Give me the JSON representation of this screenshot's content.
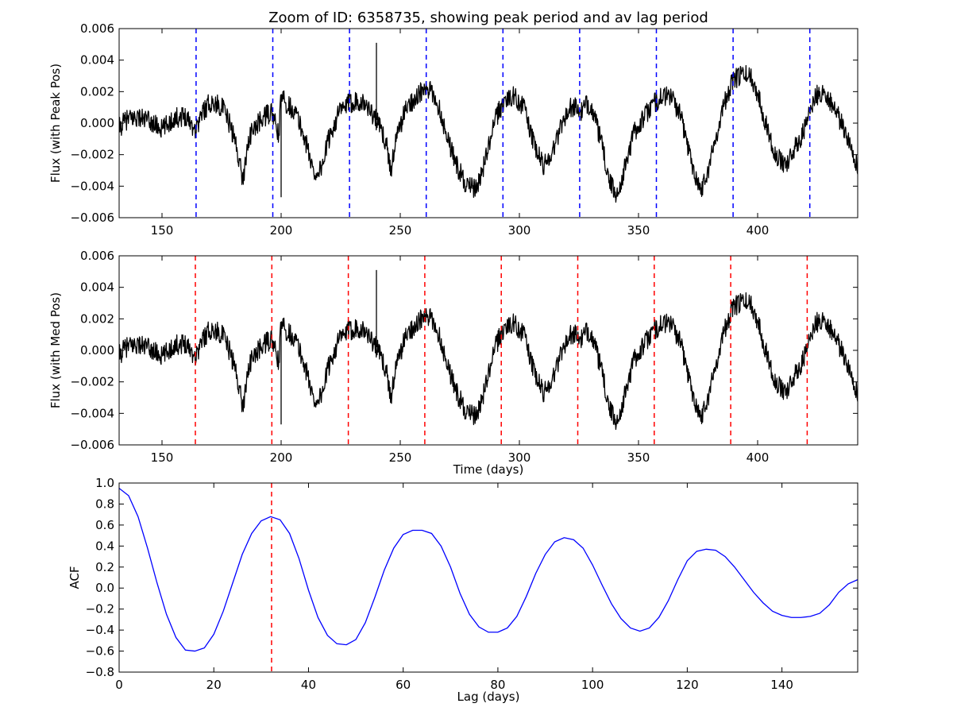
{
  "figure": {
    "title": "Zoom of ID: 6358735, showing peak period and av lag period"
  },
  "chart_data": [
    {
      "type": "line",
      "ylabel": "Flux (with Peak Pos)",
      "xlabel": "",
      "xlim": [
        132,
        442
      ],
      "ylim": [
        -0.006,
        0.006
      ],
      "xticks": [
        150,
        200,
        250,
        300,
        350,
        400
      ],
      "yticks": [
        -0.006,
        -0.004,
        -0.002,
        0.0,
        0.002,
        0.004,
        0.006
      ],
      "ytick_labels": [
        "−0.006",
        "−0.004",
        "−0.002",
        "0.000",
        "0.002",
        "0.004",
        "0.006"
      ],
      "series": [
        {
          "color": "#000000",
          "x": [
            132,
            135,
            140,
            145,
            150,
            155,
            160,
            164,
            167,
            170,
            175,
            178,
            180,
            182,
            184,
            186,
            188,
            192,
            196,
            199,
            200,
            202,
            206,
            210,
            214,
            217,
            220,
            224,
            228,
            232,
            236,
            240,
            244,
            246,
            248,
            252,
            256,
            260,
            263,
            266,
            270,
            274,
            278,
            282,
            286,
            290,
            294,
            298,
            302,
            306,
            310,
            314,
            318,
            322,
            326,
            328,
            330,
            334,
            338,
            341,
            344,
            348,
            352,
            356,
            360,
            364,
            368,
            372,
            376,
            379,
            382,
            386,
            390,
            394,
            397,
            400,
            404,
            408,
            412,
            416,
            420,
            424,
            428,
            432,
            436,
            440,
            442
          ],
          "y": [
            -0.0003,
            0.0002,
            0.0004,
            0.0001,
            -0.0004,
            0.0003,
            0.0005,
            -0.0004,
            0.0007,
            0.0013,
            0.0011,
            0.0001,
            -0.0008,
            -0.002,
            -0.0037,
            -0.0012,
            -0.0005,
            0.0003,
            0.0007,
            -0.0008,
            0.0017,
            0.0013,
            0.0007,
            -0.001,
            -0.0033,
            -0.0028,
            -0.001,
            0.0006,
            0.0012,
            0.0015,
            0.0011,
            0.0002,
            -0.0012,
            -0.003,
            -0.0012,
            0.0008,
            0.0016,
            0.0021,
            0.002,
            0.0011,
            -0.001,
            -0.0028,
            -0.004,
            -0.0042,
            -0.0022,
            0.0003,
            0.0015,
            0.0017,
            0.001,
            -0.0013,
            -0.0027,
            -0.0018,
            0.0001,
            0.0011,
            0.0007,
            0.0011,
            0.0012,
            -0.001,
            -0.0038,
            -0.0046,
            -0.003,
            -0.0006,
            0.0003,
            0.0012,
            0.0017,
            0.0017,
            0.0003,
            -0.0023,
            -0.0043,
            -0.0031,
            -0.0012,
            0.0013,
            0.0028,
            0.0031,
            0.003,
            0.0019,
            -0.0003,
            -0.0022,
            -0.0026,
            -0.0015,
            -0.0003,
            0.0017,
            0.002,
            0.001,
            -0.0003,
            -0.0017,
            -0.003
          ]
        }
      ],
      "spikes": [
        [
          240,
          0.0051
        ],
        [
          200,
          -0.0047
        ]
      ],
      "vlines": {
        "color": "#0000ff",
        "x": [
          164.3,
          196.5,
          228.7,
          260.9,
          293.1,
          325.3,
          357.5,
          389.7,
          421.9
        ]
      }
    },
    {
      "type": "line",
      "ylabel": "Flux (with Med Pos)",
      "xlabel": "Time (days)",
      "xlim": [
        132,
        442
      ],
      "ylim": [
        -0.006,
        0.006
      ],
      "xticks": [
        150,
        200,
        250,
        300,
        350,
        400
      ],
      "yticks": [
        -0.006,
        -0.004,
        -0.002,
        0.0,
        0.002,
        0.004,
        0.006
      ],
      "ytick_labels": [
        "−0.006",
        "−0.004",
        "−0.002",
        "0.000",
        "0.002",
        "0.004",
        "0.006"
      ],
      "series": [
        {
          "color": "#000000",
          "x": [
            132,
            135,
            140,
            145,
            150,
            155,
            160,
            164,
            167,
            170,
            175,
            178,
            180,
            182,
            184,
            186,
            188,
            192,
            196,
            199,
            200,
            202,
            206,
            210,
            214,
            217,
            220,
            224,
            228,
            232,
            236,
            240,
            244,
            246,
            248,
            252,
            256,
            260,
            263,
            266,
            270,
            274,
            278,
            282,
            286,
            290,
            294,
            298,
            302,
            306,
            310,
            314,
            318,
            322,
            326,
            328,
            330,
            334,
            338,
            341,
            344,
            348,
            352,
            356,
            360,
            364,
            368,
            372,
            376,
            379,
            382,
            386,
            390,
            394,
            397,
            400,
            404,
            408,
            412,
            416,
            420,
            424,
            428,
            432,
            436,
            440,
            442
          ],
          "y": [
            -0.0003,
            0.0002,
            0.0004,
            0.0001,
            -0.0004,
            0.0003,
            0.0005,
            -0.0004,
            0.0007,
            0.0013,
            0.0011,
            0.0001,
            -0.0008,
            -0.002,
            -0.0037,
            -0.0012,
            -0.0005,
            0.0003,
            0.0007,
            -0.0008,
            0.0017,
            0.0013,
            0.0007,
            -0.001,
            -0.0033,
            -0.0028,
            -0.001,
            0.0006,
            0.0012,
            0.0015,
            0.0011,
            0.0002,
            -0.0012,
            -0.003,
            -0.0012,
            0.0008,
            0.0016,
            0.0021,
            0.002,
            0.0011,
            -0.001,
            -0.0028,
            -0.004,
            -0.0042,
            -0.0022,
            0.0003,
            0.0015,
            0.0017,
            0.001,
            -0.0013,
            -0.0027,
            -0.0018,
            0.0001,
            0.0011,
            0.0007,
            0.0011,
            0.0012,
            -0.001,
            -0.0038,
            -0.0046,
            -0.003,
            -0.0006,
            0.0003,
            0.0012,
            0.0017,
            0.0017,
            0.0003,
            -0.0023,
            -0.0043,
            -0.0031,
            -0.0012,
            0.0013,
            0.0028,
            0.0031,
            0.003,
            0.0019,
            -0.0003,
            -0.0022,
            -0.0026,
            -0.0015,
            -0.0003,
            0.0017,
            0.002,
            0.001,
            -0.0003,
            -0.0017,
            -0.003
          ]
        }
      ],
      "spikes": [
        [
          240,
          0.0051
        ],
        [
          200,
          -0.0047
        ]
      ],
      "vlines": {
        "color": "#ff0000",
        "x": [
          164.0,
          196.1,
          228.2,
          260.3,
          292.4,
          324.5,
          356.6,
          388.7,
          420.8
        ]
      }
    },
    {
      "type": "line",
      "ylabel": "ACF",
      "xlabel": "Lag (days)",
      "xlim": [
        0,
        156
      ],
      "ylim": [
        -0.8,
        1.0
      ],
      "xticks": [
        0,
        20,
        40,
        60,
        80,
        100,
        120,
        140
      ],
      "yticks": [
        -0.8,
        -0.6,
        -0.4,
        -0.2,
        0.0,
        0.2,
        0.4,
        0.6,
        0.8,
        1.0
      ],
      "ytick_labels": [
        "−0.8",
        "−0.6",
        "−0.4",
        "−0.2",
        "0.0",
        "0.2",
        "0.4",
        "0.6",
        "0.8",
        "1.0"
      ],
      "series": [
        {
          "color": "#0000ff",
          "x": [
            0,
            2,
            4,
            6,
            8,
            10,
            12,
            14,
            16,
            18,
            20,
            22,
            24,
            26,
            28,
            30,
            32,
            34,
            36,
            38,
            40,
            42,
            44,
            46,
            48,
            50,
            52,
            54,
            56,
            58,
            60,
            62,
            64,
            66,
            68,
            70,
            72,
            74,
            76,
            78,
            80,
            82,
            84,
            86,
            88,
            90,
            92,
            94,
            96,
            98,
            100,
            102,
            104,
            106,
            108,
            110,
            112,
            114,
            116,
            118,
            120,
            122,
            124,
            126,
            128,
            130,
            132,
            134,
            136,
            138,
            140,
            142,
            144,
            146,
            148,
            150,
            152,
            154,
            156
          ],
          "y": [
            0.95,
            0.88,
            0.68,
            0.38,
            0.05,
            -0.25,
            -0.47,
            -0.59,
            -0.6,
            -0.57,
            -0.44,
            -0.22,
            0.05,
            0.32,
            0.52,
            0.64,
            0.68,
            0.65,
            0.52,
            0.28,
            -0.02,
            -0.28,
            -0.45,
            -0.53,
            -0.54,
            -0.49,
            -0.33,
            -0.09,
            0.17,
            0.38,
            0.51,
            0.55,
            0.55,
            0.52,
            0.4,
            0.2,
            -0.05,
            -0.25,
            -0.37,
            -0.42,
            -0.42,
            -0.38,
            -0.27,
            -0.08,
            0.14,
            0.32,
            0.44,
            0.48,
            0.46,
            0.38,
            0.22,
            0.03,
            -0.15,
            -0.29,
            -0.38,
            -0.41,
            -0.38,
            -0.28,
            -0.12,
            0.08,
            0.26,
            0.35,
            0.37,
            0.36,
            0.3,
            0.2,
            0.08,
            -0.04,
            -0.14,
            -0.22,
            -0.26,
            -0.28,
            -0.28,
            -0.27,
            -0.24,
            -0.16,
            -0.04,
            0.04,
            0.08
          ]
        }
      ],
      "vlines": {
        "color": "#ff0000",
        "x": [
          32.2
        ]
      }
    }
  ]
}
